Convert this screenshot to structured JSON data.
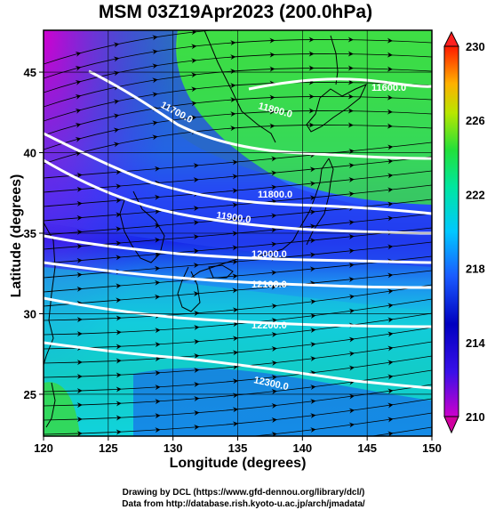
{
  "title": "MSM 03Z19Apr2023 (200.0hPa)",
  "map": {
    "xlabel": "Longitude (degrees)",
    "ylabel": "Latitude  (degrees)",
    "lon_range": [
      120,
      150
    ],
    "lat_range": [
      22.4,
      47.6
    ],
    "lon_ticks": [
      "120",
      "125",
      "130",
      "135",
      "140",
      "145",
      "150"
    ],
    "lat_ticks": [
      "25",
      "30",
      "35",
      "40",
      "45"
    ],
    "contour_labels": [
      "11600.0",
      "11700.0",
      "11800.0",
      "11800.0",
      "11900.0",
      "12000.0",
      "12100.0",
      "12200.0",
      "12300.0"
    ],
    "contour_color": "#ffffff",
    "coastline_color": "#000000",
    "streamline_color": "#000000"
  },
  "colorbar": {
    "min": 210,
    "max": 230,
    "tick_labels": [
      "230",
      "226",
      "222",
      "218",
      "214",
      "210"
    ],
    "colors": [
      "#ff1a00",
      "#ff8c00",
      "#e6e600",
      "#33e633",
      "#00e6b3",
      "#00b3ff",
      "#1a1aff",
      "#0000b3",
      "#cc00cc"
    ]
  },
  "credits": {
    "line1": "Drawing by DCL (https://www.gfd-dennou.org/library/dcl/)",
    "line2": "Data from http://database.rish.kyoto-u.ac.jp/arch/jmadata/"
  }
}
